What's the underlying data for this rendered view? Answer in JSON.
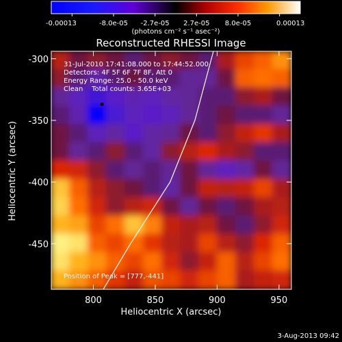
{
  "chart_data": {
    "type": "heatmap",
    "title": "Reconstructed RHESSI Image",
    "xlabel": "Heliocentric X (arcsec)",
    "ylabel": "Heliocentric Y (arcsec)",
    "xlim": [
      766,
      960
    ],
    "ylim": [
      -487,
      -294
    ],
    "xticks": [
      800,
      850,
      900,
      950
    ],
    "yticks": [
      -300,
      -350,
      -400,
      -450
    ],
    "colorbar": {
      "ticks": [
        "-0.00013",
        "-8.0e-05",
        "-2.7e-05",
        "2.7e-05",
        "8.0e-05",
        "0.00013"
      ],
      "vmin": -0.00013,
      "vmax": 0.00013,
      "units": "(photons cm⁻² s⁻¹ asec⁻²)"
    },
    "annotations": [
      "31-Jul-2010 17:41:08.000 to 17:44:52.000",
      "Detectors: 4F 5F 6F 7F 8F, Att 0",
      "Energy Range: 25.0 - 50.0 keV",
      "Clean    Total counts: 3.65E+03"
    ],
    "peak_label": "Position of Peak = [777,-441]",
    "peak": [
      777,
      -441
    ],
    "minimum_marker": [
      807,
      -337
    ],
    "limb_curve": [
      [
        808,
        -487
      ],
      [
        830,
        -450
      ],
      [
        862,
        -400
      ],
      [
        882,
        -350
      ],
      [
        897,
        -294
      ]
    ],
    "grid": [
      [
        0.2,
        0.05,
        0.1,
        0.05,
        -0.05,
        0.05,
        0.1,
        0.05,
        -0.05,
        0.15,
        0.45,
        0.55,
        0.7
      ],
      [
        0.1,
        -0.05,
        -0.2,
        -0.05,
        0.05,
        -0.05,
        -0.05,
        -0.1,
        -0.1,
        0.05,
        0.55,
        0.6,
        0.55
      ],
      [
        -0.1,
        -0.25,
        -0.45,
        -0.3,
        -0.2,
        -0.25,
        -0.15,
        -0.1,
        -0.05,
        -0.05,
        0.1,
        0.15,
        0.05
      ],
      [
        -0.05,
        -0.2,
        -0.95,
        -0.4,
        -0.25,
        -0.3,
        -0.25,
        -0.1,
        -0.05,
        0.05,
        -0.05,
        -0.05,
        -0.1
      ],
      [
        0.05,
        -0.05,
        -0.25,
        -0.15,
        -0.3,
        -0.15,
        -0.1,
        0.05,
        -0.05,
        0.1,
        0.25,
        0.4,
        0.15
      ],
      [
        0.05,
        -0.1,
        -0.05,
        0.1,
        -0.05,
        -0.15,
        0.1,
        0.2,
        0.35,
        0.15,
        0.1,
        -0.05,
        -0.05
      ],
      [
        0.35,
        0.3,
        0.1,
        -0.05,
        -0.1,
        -0.05,
        -0.1,
        0.05,
        -0.1,
        -0.25,
        -0.15,
        0.05,
        -0.1
      ],
      [
        0.85,
        0.55,
        0.2,
        0.1,
        0.05,
        -0.05,
        -0.15,
        0.05,
        0.25,
        0.2,
        0.25,
        0.45,
        0.15
      ],
      [
        0.9,
        0.6,
        0.3,
        0.1,
        0.2,
        0.3,
        0.05,
        -0.1,
        0.05,
        -0.05,
        0.05,
        0.15,
        0.2
      ],
      [
        0.8,
        0.75,
        0.45,
        0.6,
        0.85,
        0.65,
        0.25,
        0.15,
        0.2,
        0.05,
        -0.05,
        0.1,
        0.3
      ],
      [
        1.0,
        0.95,
        0.55,
        0.45,
        0.6,
        0.4,
        0.2,
        0.15,
        0.45,
        0.2,
        0.1,
        0.35,
        0.55
      ],
      [
        0.95,
        0.8,
        0.7,
        0.55,
        0.45,
        0.6,
        0.3,
        0.1,
        0.25,
        0.55,
        0.2,
        0.45,
        0.6
      ],
      [
        0.8,
        0.7,
        0.55,
        0.4,
        0.25,
        0.5,
        0.45,
        0.3,
        0.45,
        0.55,
        0.15,
        0.25,
        0.3
      ]
    ]
  },
  "footer": {
    "date": "3-Aug-2013 09:42"
  }
}
